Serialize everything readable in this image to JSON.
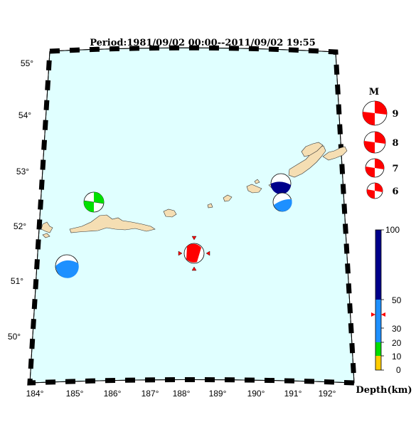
{
  "title": "Period:1981/09/02 00:00--2011/09/02 19:55",
  "map": {
    "ocean_color": "#e0ffff",
    "land_color": "#f5deb3",
    "lon_ticks": [
      "184°",
      "185°",
      "186°",
      "187°",
      "188°",
      "189°",
      "190°",
      "191°",
      "192°"
    ],
    "lat_ticks": [
      "55°",
      "54°",
      "53°",
      "52°",
      "51°",
      "50°"
    ]
  },
  "magnitude_legend": {
    "title": "M",
    "items": [
      "9",
      "8",
      "7",
      "6"
    ]
  },
  "depth_scale": {
    "title": "Depth(km)",
    "labels": [
      "100",
      "50",
      "30",
      "20",
      "10",
      "0"
    ],
    "colors": {
      "0-10": "#ffcc00",
      "10-20": "#ffffff",
      "20-30": "#00dd00",
      "30-50": "#1e90ff",
      "50-100": "#00008b"
    }
  },
  "events": [
    {
      "name": "event-nw-green",
      "color": "#00e000"
    },
    {
      "name": "event-sw-blue",
      "color": "#1e90ff"
    },
    {
      "name": "event-central-red",
      "color": "#ff0000"
    },
    {
      "name": "event-ne-darkblue",
      "color": "#0000a0"
    },
    {
      "name": "event-ne-blue",
      "color": "#1e90ff"
    }
  ]
}
